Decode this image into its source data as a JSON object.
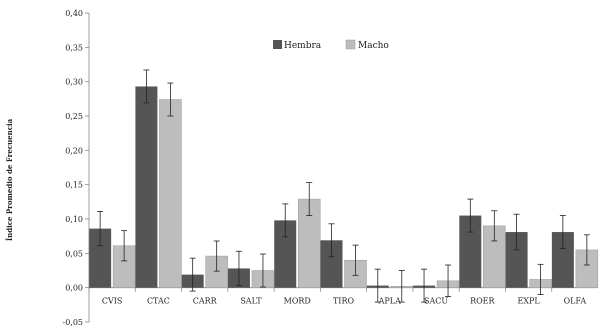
{
  "chart_data": {
    "type": "bar",
    "ylabel": "Índice Promedio de Frecuencia",
    "ylim": [
      -0.05,
      0.4
    ],
    "yticks": [
      "-0,05",
      "0,00",
      "0,05",
      "0,10",
      "0,15",
      "0,20",
      "0,25",
      "0,30",
      "0,35",
      "0,40"
    ],
    "ytick_values": [
      -0.05,
      0,
      0.05,
      0.1,
      0.15,
      0.2,
      0.25,
      0.3,
      0.35,
      0.4
    ],
    "categories": [
      "CVIS",
      "CTAC",
      "CARR",
      "SALT",
      "MORD",
      "TIRO",
      "APLA",
      "SACU",
      "ROER",
      "EXPL",
      "OLFA"
    ],
    "legend_position": "top-center",
    "series": [
      {
        "name": "Hembra",
        "color": "#555555",
        "values": [
          0.086,
          0.293,
          0.019,
          0.028,
          0.098,
          0.069,
          0.003,
          0.003,
          0.105,
          0.081,
          0.081
        ],
        "errors": [
          0.025,
          0.024,
          0.024,
          0.025,
          0.024,
          0.024,
          0.024,
          0.024,
          0.024,
          0.026,
          0.024
        ]
      },
      {
        "name": "Macho",
        "color": "#bdbdbd",
        "values": [
          0.061,
          0.274,
          0.046,
          0.025,
          0.129,
          0.04,
          0.002,
          0.01,
          0.09,
          0.012,
          0.055
        ],
        "errors": [
          0.022,
          0.024,
          0.022,
          0.024,
          0.024,
          0.022,
          0.023,
          0.023,
          0.022,
          0.022,
          0.022
        ]
      }
    ]
  }
}
